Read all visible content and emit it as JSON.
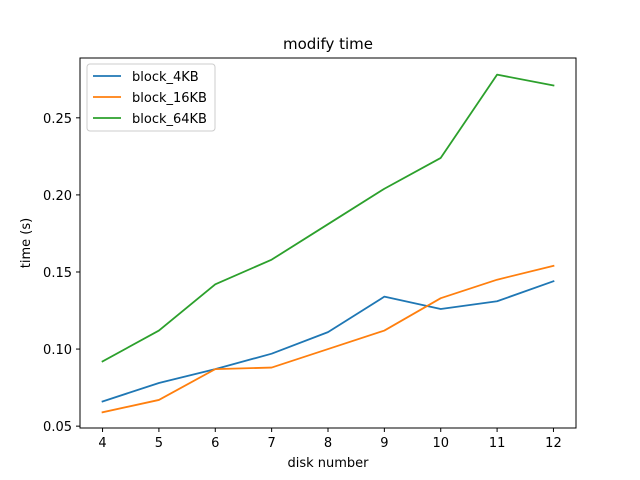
{
  "chart_data": {
    "type": "line",
    "title": "modify time",
    "xlabel": "disk number",
    "ylabel": "time (s)",
    "x": [
      4,
      5,
      6,
      7,
      8,
      9,
      10,
      11,
      12
    ],
    "xticks": [
      "4",
      "5",
      "6",
      "7",
      "8",
      "9",
      "10",
      "11",
      "12"
    ],
    "yticks": [
      "0.05",
      "0.10",
      "0.15",
      "0.20",
      "0.25"
    ],
    "xlim": [
      3.6,
      12.4
    ],
    "ylim": [
      0.0488,
      0.2888
    ],
    "grid": false,
    "legend_position": "top-left",
    "series": [
      {
        "name": "block_4KB",
        "color": "#1f77b4",
        "values": [
          0.066,
          0.078,
          0.087,
          0.097,
          0.111,
          0.134,
          0.126,
          0.131,
          0.144
        ]
      },
      {
        "name": "block_16KB",
        "color": "#ff7f0e",
        "values": [
          0.059,
          0.067,
          0.087,
          0.088,
          0.1,
          0.112,
          0.133,
          0.145,
          0.154
        ]
      },
      {
        "name": "block_64KB",
        "color": "#2ca02c",
        "values": [
          0.092,
          0.112,
          0.142,
          0.158,
          0.181,
          0.204,
          0.224,
          0.278,
          0.271
        ]
      }
    ]
  }
}
